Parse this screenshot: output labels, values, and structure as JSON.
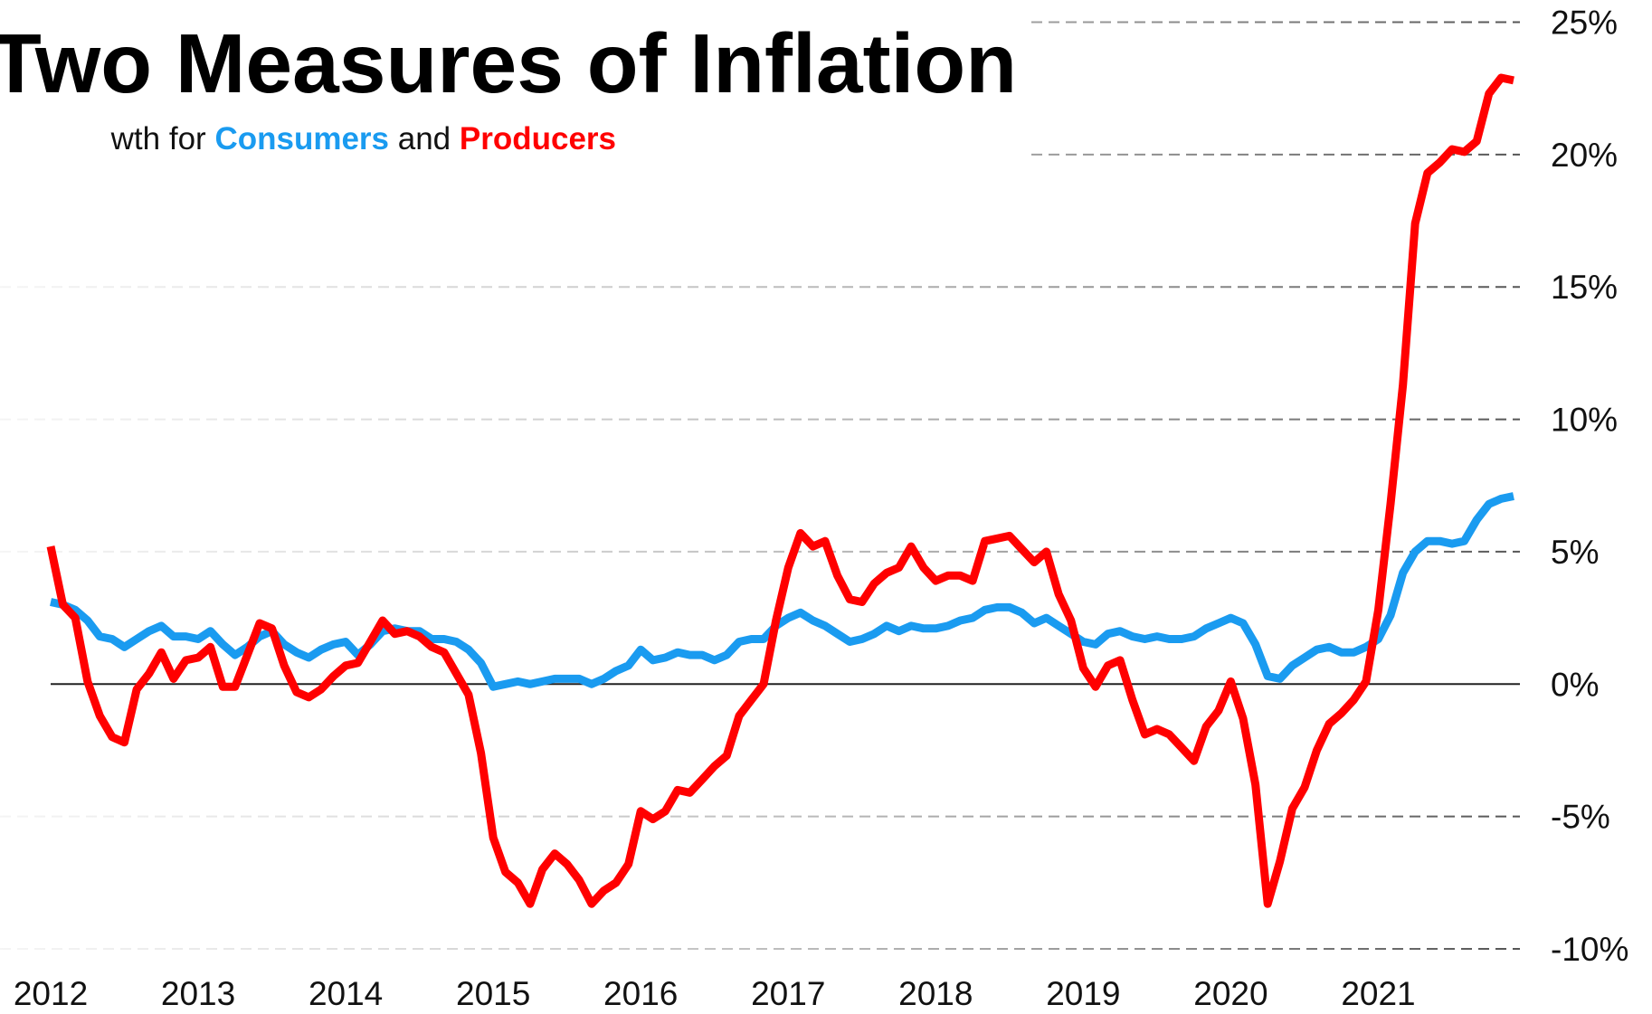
{
  "chart_data": {
    "type": "line",
    "title": "Two Measures of Inflation",
    "subtitle": {
      "lead": "wth for",
      "series_a": "Consumers",
      "joiner": "and",
      "series_b": "Producers"
    },
    "x": [
      2012,
      2012.083,
      2012.167,
      2012.25,
      2012.333,
      2012.417,
      2012.5,
      2012.583,
      2012.667,
      2012.75,
      2012.833,
      2012.917,
      2013,
      2013.083,
      2013.167,
      2013.25,
      2013.333,
      2013.417,
      2013.5,
      2013.583,
      2013.667,
      2013.75,
      2013.833,
      2013.917,
      2014,
      2014.083,
      2014.167,
      2014.25,
      2014.333,
      2014.417,
      2014.5,
      2014.583,
      2014.667,
      2014.75,
      2014.833,
      2014.917,
      2015,
      2015.083,
      2015.167,
      2015.25,
      2015.333,
      2015.417,
      2015.5,
      2015.583,
      2015.667,
      2015.75,
      2015.833,
      2015.917,
      2016,
      2016.083,
      2016.167,
      2016.25,
      2016.333,
      2016.417,
      2016.5,
      2016.583,
      2016.667,
      2016.75,
      2016.833,
      2016.917,
      2017,
      2017.083,
      2017.167,
      2017.25,
      2017.333,
      2017.417,
      2017.5,
      2017.583,
      2017.667,
      2017.75,
      2017.833,
      2017.917,
      2018,
      2018.083,
      2018.167,
      2018.25,
      2018.333,
      2018.417,
      2018.5,
      2018.583,
      2018.667,
      2018.75,
      2018.833,
      2018.917,
      2019,
      2019.083,
      2019.167,
      2019.25,
      2019.333,
      2019.417,
      2019.5,
      2019.583,
      2019.667,
      2019.75,
      2019.833,
      2019.917,
      2020,
      2020.083,
      2020.167,
      2020.25,
      2020.333,
      2020.417,
      2020.5,
      2020.583,
      2020.667,
      2020.75,
      2020.833,
      2020.917,
      2021,
      2021.083,
      2021.167,
      2021.25,
      2021.333,
      2021.417,
      2021.5,
      2021.583,
      2021.667,
      2021.75,
      2021.833,
      2021.917
    ],
    "series": [
      {
        "name": "Consumers",
        "color": "#1a9bf0",
        "values": [
          3.1,
          3.0,
          2.8,
          2.4,
          1.8,
          1.7,
          1.4,
          1.7,
          2.0,
          2.2,
          1.8,
          1.8,
          1.7,
          2.0,
          1.5,
          1.1,
          1.4,
          1.8,
          2.0,
          1.5,
          1.2,
          1.0,
          1.3,
          1.5,
          1.6,
          1.1,
          1.5,
          2.0,
          2.1,
          2.0,
          2.0,
          1.7,
          1.7,
          1.6,
          1.3,
          0.8,
          -0.1,
          0.0,
          0.1,
          0.0,
          0.1,
          0.2,
          0.2,
          0.2,
          0.0,
          0.2,
          0.5,
          0.7,
          1.3,
          0.9,
          1.0,
          1.2,
          1.1,
          1.1,
          0.9,
          1.1,
          1.6,
          1.7,
          1.7,
          2.2,
          2.5,
          2.7,
          2.4,
          2.2,
          1.9,
          1.6,
          1.7,
          1.9,
          2.2,
          2.0,
          2.2,
          2.1,
          2.1,
          2.2,
          2.4,
          2.5,
          2.8,
          2.9,
          2.9,
          2.7,
          2.3,
          2.5,
          2.2,
          1.9,
          1.6,
          1.5,
          1.9,
          2.0,
          1.8,
          1.7,
          1.8,
          1.7,
          1.7,
          1.8,
          2.1,
          2.3,
          2.5,
          2.3,
          1.5,
          0.3,
          0.2,
          0.7,
          1.0,
          1.3,
          1.4,
          1.2,
          1.2,
          1.4,
          1.7,
          2.6,
          4.2,
          5.0,
          5.4,
          5.4,
          5.3,
          5.4,
          6.2,
          6.8,
          7.0,
          7.1
        ]
      },
      {
        "name": "Producers",
        "color": "#ff0000",
        "values": [
          5.2,
          3.0,
          2.5,
          0.1,
          -1.2,
          -2.0,
          -2.2,
          -0.2,
          0.4,
          1.2,
          0.2,
          0.9,
          1.0,
          1.4,
          -0.1,
          -0.1,
          1.1,
          2.3,
          2.1,
          0.7,
          -0.3,
          -0.5,
          -0.2,
          0.3,
          0.7,
          0.8,
          1.6,
          2.4,
          1.9,
          2.0,
          1.8,
          1.4,
          1.2,
          0.4,
          -0.4,
          -2.6,
          -5.8,
          -7.1,
          -7.5,
          -8.3,
          -7.0,
          -6.4,
          -6.8,
          -7.4,
          -8.3,
          -7.8,
          -7.5,
          -6.8,
          -4.8,
          -5.1,
          -4.8,
          -4.0,
          -4.1,
          -3.6,
          -3.1,
          -2.7,
          -1.2,
          -0.6,
          0.0,
          2.4,
          4.4,
          5.7,
          5.2,
          5.4,
          4.1,
          3.2,
          3.1,
          3.8,
          4.2,
          4.4,
          5.2,
          4.4,
          3.9,
          4.1,
          4.1,
          3.9,
          5.4,
          5.5,
          5.6,
          5.1,
          4.6,
          5.0,
          3.4,
          2.4,
          0.6,
          -0.1,
          0.7,
          0.9,
          -0.6,
          -1.9,
          -1.7,
          -1.9,
          -2.4,
          -2.9,
          -1.6,
          -1.0,
          0.1,
          -1.3,
          -3.8,
          -8.3,
          -6.7,
          -4.7,
          -3.9,
          -2.5,
          -1.5,
          -1.1,
          -0.6,
          0.1,
          2.8,
          6.8,
          11.3,
          17.4,
          19.3,
          19.7,
          20.2,
          20.1,
          20.5,
          22.3,
          22.9,
          22.8
        ]
      }
    ],
    "xlim": [
      2012,
      2021.917
    ],
    "xticks": [
      2012,
      2013,
      2014,
      2015,
      2016,
      2017,
      2018,
      2019,
      2020,
      2021
    ],
    "ylim": [
      -10,
      25
    ],
    "yticks": [
      {
        "value": -10,
        "label": "-10%"
      },
      {
        "value": -5,
        "label": "-5%"
      },
      {
        "value": 0,
        "label": "0%"
      },
      {
        "value": 5,
        "label": "5%"
      },
      {
        "value": 10,
        "label": "10%"
      },
      {
        "value": 15,
        "label": "15%"
      },
      {
        "value": 20,
        "label": "20%"
      },
      {
        "value": 25,
        "label": "25%"
      }
    ],
    "grid": true
  }
}
